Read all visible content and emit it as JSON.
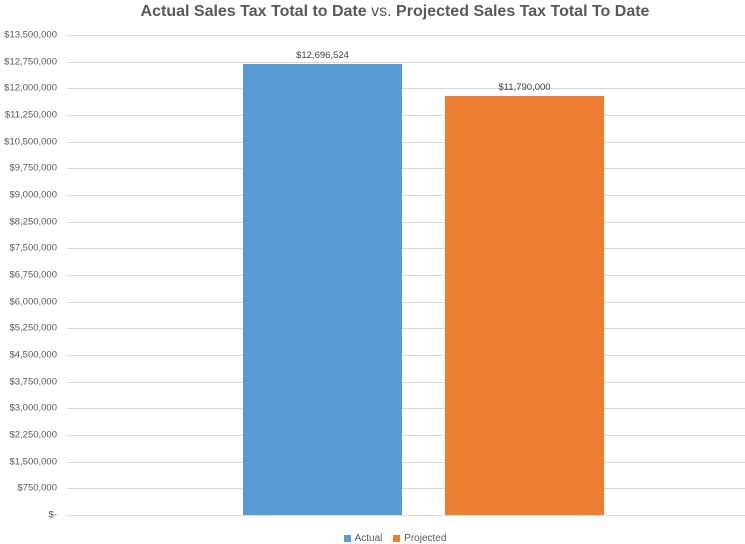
{
  "chart_data": {
    "type": "bar",
    "title": "Actual Sales Tax Total to Date vs. Projected Sales Tax Total To Date",
    "title_parts": {
      "left": "Actual Sales Tax Total to Date",
      "middle": "vs.",
      "right": "Projected Sales Tax Total To Date"
    },
    "categories": [
      "Actual",
      "Projected"
    ],
    "values": [
      12696524,
      11790000
    ],
    "data_labels": [
      "$12,696,524",
      "$11,790,000"
    ],
    "colors": [
      "#5b9bd5",
      "#ed7d31"
    ],
    "xlabel": "",
    "ylabel": "",
    "ylim": [
      0,
      13500000
    ],
    "y_ticks": [
      0,
      750000,
      1500000,
      2250000,
      3000000,
      3750000,
      4500000,
      5250000,
      6000000,
      6750000,
      7500000,
      8250000,
      9000000,
      9750000,
      10500000,
      11250000,
      12000000,
      12750000,
      13500000
    ],
    "y_tick_labels": [
      "$-",
      "$750,000",
      "$1,500,000",
      "$2,250,000",
      "$3,000,000",
      "$3,750,000",
      "$4,500,000",
      "$5,250,000",
      "$6,000,000",
      "$6,750,000",
      "$7,500,000",
      "$8,250,000",
      "$9,000,000",
      "$9,750,000",
      "$10,500,000",
      "$11,250,000",
      "$12,000,000",
      "$12,750,000",
      "$13,500,000"
    ],
    "grid": true,
    "legend_position": "bottom",
    "legend": [
      "Actual",
      "Projected"
    ]
  }
}
